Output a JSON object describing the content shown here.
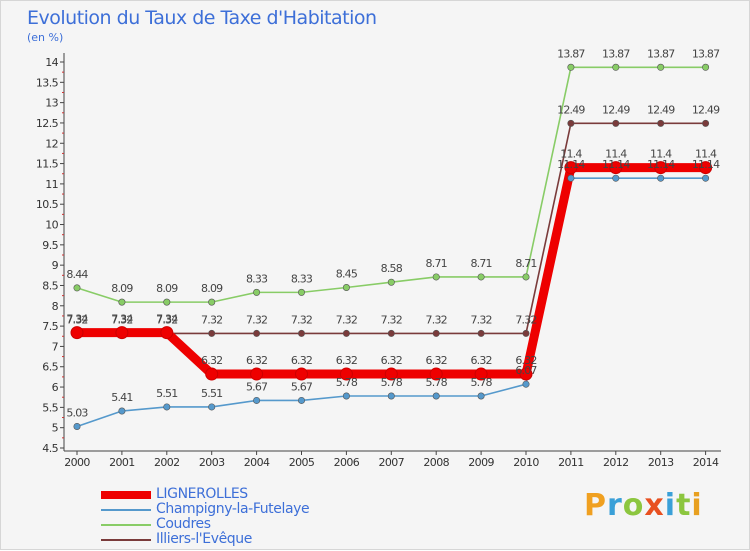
{
  "chart_data": {
    "type": "line",
    "title": "Evolution du Taux de Taxe d'Habitation",
    "subtitle": "(en %)",
    "categories": [
      "2000",
      "2001",
      "2002",
      "2003",
      "2004",
      "2005",
      "2006",
      "2007",
      "2008",
      "2009",
      "2010",
      "2011",
      "2012",
      "2013",
      "2014"
    ],
    "y_ticks": [
      "4.5",
      "5",
      "5.5",
      "6",
      "6.5",
      "7",
      "7.5",
      "8",
      "8.5",
      "9",
      "9.5",
      "10",
      "10.5",
      "11",
      "11.5",
      "12",
      "12.5",
      "13",
      "13.5",
      "14"
    ],
    "ylim": [
      4.5,
      14
    ],
    "series": [
      {
        "name": "LIGNEROLLES",
        "color": "#ee0000",
        "values": [
          7.34,
          7.34,
          7.34,
          6.32,
          6.32,
          6.32,
          6.32,
          6.32,
          6.32,
          6.32,
          6.32,
          11.4,
          11.4,
          11.4,
          11.4
        ]
      },
      {
        "name": "Champigny-la-Futelaye",
        "color": "#5599cc",
        "values": [
          5.03,
          5.41,
          5.51,
          5.51,
          5.67,
          5.67,
          5.78,
          5.78,
          5.78,
          5.78,
          6.07,
          11.14,
          11.14,
          11.14,
          11.14
        ]
      },
      {
        "name": "Coudres",
        "color": "#88cc66",
        "values": [
          8.44,
          8.09,
          8.09,
          8.09,
          8.33,
          8.33,
          8.45,
          8.58,
          8.71,
          8.71,
          8.71,
          13.87,
          13.87,
          13.87,
          13.87
        ]
      },
      {
        "name": "Illiers-l'Evêque",
        "color": "#7a3b3b",
        "values": [
          7.32,
          7.32,
          7.32,
          7.32,
          7.32,
          7.32,
          7.32,
          7.32,
          7.32,
          7.32,
          7.32,
          12.49,
          12.49,
          12.49,
          12.49
        ]
      }
    ],
    "grid": false,
    "legend_position": "bottom-left"
  },
  "logo": {
    "letters": [
      "P",
      "r",
      "o",
      "x",
      "i",
      "t",
      "i"
    ],
    "colors": [
      "#f0a020",
      "#3aa0d8",
      "#8cc63f",
      "#e85020",
      "#3aa0d8",
      "#8cc63f",
      "#e8a020"
    ]
  }
}
